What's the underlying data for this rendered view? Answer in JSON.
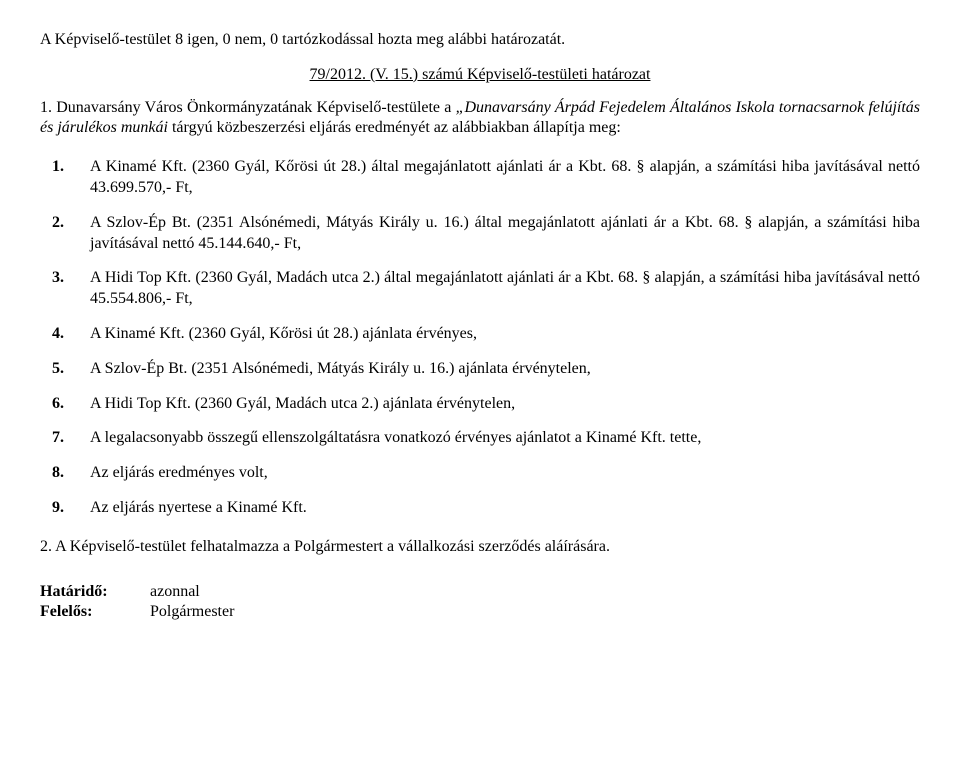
{
  "intro": "A Képviselő-testület 8 igen, 0 nem, 0 tartózkodással hozta meg alábbi határozatát.",
  "resolution_number": "79/2012. (V. 15.) számú Képviselő-testületi határozat",
  "para1_prefix": "1. Dunavarsány Város Önkormányzatának Képviselő-testülete a ",
  "para1_italic": "„Dunavarsány Árpád Fejedelem Általános Iskola tornacsarnok felújítás és járulékos munkái",
  "para1_suffix": " tárgyú közbeszerzési eljárás eredményét az alábbiakban állapítja meg:",
  "items": [
    "A Kinamé Kft. (2360 Gyál, Kőrösi út 28.) által megajánlatott ajánlati ár a Kbt. 68. § alapján, a számítási hiba javításával nettó 43.699.570,- Ft,",
    "A Szlov-Ép Bt. (2351 Alsónémedi, Mátyás Király u. 16.) által megajánlatott ajánlati ár a Kbt. 68. § alapján, a számítási hiba javításával nettó 45.144.640,- Ft,",
    "A Hidi Top Kft. (2360 Gyál, Madách utca 2.) által megajánlatott ajánlati ár a Kbt. 68. § alapján, a számítási hiba javításával nettó 45.554.806,- Ft,",
    "A Kinamé Kft. (2360 Gyál, Kőrösi út 28.) ajánlata érvényes,",
    "A Szlov-Ép Bt. (2351 Alsónémedi, Mátyás Király u. 16.) ajánlata érvénytelen,",
    "A Hidi Top Kft. (2360 Gyál, Madách utca 2.) ajánlata érvénytelen,",
    "A legalacsonyabb összegű ellenszolgáltatásra vonatkozó érvényes ajánlatot a Kinamé Kft. tette,",
    "Az eljárás eredményes volt,",
    "Az eljárás nyertese a Kinamé Kft."
  ],
  "para2": "2. A Képviselő-testület felhatalmazza a Polgármestert a vállalkozási szerződés aláírására.",
  "deadline_label": "Határidő:",
  "deadline_value": "azonnal",
  "responsible_label": "Felelős:",
  "responsible_value": "Polgármester"
}
